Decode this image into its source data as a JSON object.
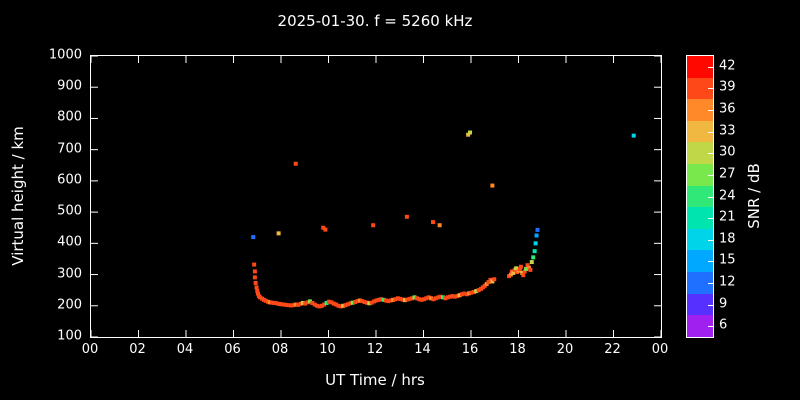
{
  "colors": {
    "background": "#000000",
    "foreground": "#ffffff"
  },
  "chart_data": {
    "type": "scatter",
    "title": "2025-01-30. f = 5260 kHz",
    "xlabel": "UT Time / hrs",
    "ylabel": "Virtual height / km",
    "xlim": [
      0,
      24
    ],
    "ylim": [
      100,
      1000
    ],
    "grid": false,
    "x_ticks": {
      "values": [
        0,
        2,
        4,
        6,
        8,
        10,
        12,
        14,
        16,
        18,
        20,
        22,
        24
      ],
      "labels": [
        "00",
        "02",
        "04",
        "06",
        "08",
        "10",
        "12",
        "14",
        "16",
        "18",
        "20",
        "22",
        "00"
      ]
    },
    "y_ticks": [
      100,
      200,
      300,
      400,
      500,
      600,
      700,
      800,
      900,
      1000
    ],
    "colorbar": {
      "label": "SNR / dB",
      "position": "right",
      "tick_values": [
        6,
        9,
        12,
        15,
        18,
        21,
        24,
        27,
        30,
        33,
        36,
        39,
        42
      ],
      "band_colors": [
        "#a020f0",
        "#5530ff",
        "#2070ff",
        "#00a8ff",
        "#00d4e8",
        "#00e4b0",
        "#30e878",
        "#78e84c",
        "#c0d848",
        "#f0b840",
        "#ff8828",
        "#ff4818",
        "#ff0800"
      ]
    },
    "point_format": [
      "ut_hours",
      "virtual_height_km",
      "snr_db"
    ],
    "points": [
      [
        6.83,
        420,
        12
      ],
      [
        6.87,
        332,
        40
      ],
      [
        6.9,
        310,
        39
      ],
      [
        6.9,
        291,
        40
      ],
      [
        6.93,
        273,
        40
      ],
      [
        6.97,
        259,
        38
      ],
      [
        7.0,
        248,
        40
      ],
      [
        7.03,
        239,
        40
      ],
      [
        7.07,
        231,
        40
      ],
      [
        7.12,
        227,
        40
      ],
      [
        7.2,
        223,
        38
      ],
      [
        7.28,
        219,
        40
      ],
      [
        7.36,
        216,
        40
      ],
      [
        7.45,
        213,
        40
      ],
      [
        7.53,
        211,
        36
      ],
      [
        7.62,
        210,
        40
      ],
      [
        7.72,
        209,
        40
      ],
      [
        7.82,
        208,
        40
      ],
      [
        7.92,
        206,
        40
      ],
      [
        8.0,
        205,
        38
      ],
      [
        8.1,
        204,
        40
      ],
      [
        8.2,
        203,
        40
      ],
      [
        8.32,
        202,
        40
      ],
      [
        8.42,
        201,
        40
      ],
      [
        8.52,
        202,
        40
      ],
      [
        8.62,
        204,
        36
      ],
      [
        8.72,
        203,
        40
      ],
      [
        8.82,
        206,
        40
      ],
      [
        8.92,
        209,
        33
      ],
      [
        9.02,
        207,
        40
      ],
      [
        9.12,
        211,
        40
      ],
      [
        9.22,
        214,
        27
      ],
      [
        9.32,
        209,
        40
      ],
      [
        9.42,
        204,
        40
      ],
      [
        9.52,
        200,
        38
      ],
      [
        9.62,
        198,
        40
      ],
      [
        9.72,
        200,
        40
      ],
      [
        9.82,
        204,
        40
      ],
      [
        9.92,
        209,
        24
      ],
      [
        10.02,
        213,
        40
      ],
      [
        10.12,
        211,
        40
      ],
      [
        10.22,
        207,
        40
      ],
      [
        10.32,
        204,
        38
      ],
      [
        10.42,
        200,
        40
      ],
      [
        10.52,
        198,
        40
      ],
      [
        10.62,
        200,
        33
      ],
      [
        10.72,
        202,
        40
      ],
      [
        10.82,
        205,
        40
      ],
      [
        10.92,
        208,
        40
      ],
      [
        11.02,
        210,
        27
      ],
      [
        11.12,
        212,
        40
      ],
      [
        11.22,
        215,
        40
      ],
      [
        11.32,
        217,
        36
      ],
      [
        11.42,
        215,
        40
      ],
      [
        11.52,
        212,
        40
      ],
      [
        11.62,
        210,
        40
      ],
      [
        11.72,
        208,
        30
      ],
      [
        11.82,
        210,
        40
      ],
      [
        11.92,
        214,
        40
      ],
      [
        12.02,
        217,
        40
      ],
      [
        12.12,
        219,
        38
      ],
      [
        12.22,
        221,
        40
      ],
      [
        12.32,
        219,
        24
      ],
      [
        12.42,
        217,
        40
      ],
      [
        12.52,
        215,
        40
      ],
      [
        12.62,
        217,
        40
      ],
      [
        12.72,
        219,
        36
      ],
      [
        12.82,
        221,
        40
      ],
      [
        12.92,
        224,
        40
      ],
      [
        13.02,
        222,
        40
      ],
      [
        13.12,
        220,
        40
      ],
      [
        13.22,
        218,
        33
      ],
      [
        13.32,
        220,
        40
      ],
      [
        13.42,
        222,
        40
      ],
      [
        13.52,
        224,
        40
      ],
      [
        13.62,
        227,
        27
      ],
      [
        13.72,
        224,
        40
      ],
      [
        13.82,
        221,
        40
      ],
      [
        13.92,
        219,
        40
      ],
      [
        14.02,
        221,
        38
      ],
      [
        14.12,
        224,
        40
      ],
      [
        14.22,
        227,
        40
      ],
      [
        14.32,
        224,
        36
      ],
      [
        14.42,
        221,
        40
      ],
      [
        14.52,
        224,
        40
      ],
      [
        14.62,
        227,
        40
      ],
      [
        14.72,
        229,
        40
      ],
      [
        14.82,
        227,
        24
      ],
      [
        14.92,
        224,
        40
      ],
      [
        15.02,
        227,
        40
      ],
      [
        15.12,
        229,
        40
      ],
      [
        15.22,
        231,
        38
      ],
      [
        15.32,
        229,
        40
      ],
      [
        15.42,
        231,
        40
      ],
      [
        15.52,
        234,
        33
      ],
      [
        15.62,
        237,
        40
      ],
      [
        15.72,
        239,
        40
      ],
      [
        15.82,
        237,
        40
      ],
      [
        15.92,
        240,
        36
      ],
      [
        16.02,
        242,
        40
      ],
      [
        16.12,
        244,
        40
      ],
      [
        16.22,
        247,
        30
      ],
      [
        16.32,
        250,
        40
      ],
      [
        16.42,
        254,
        40
      ],
      [
        16.5,
        259,
        38
      ],
      [
        16.58,
        264,
        40
      ],
      [
        16.66,
        270,
        36
      ],
      [
        16.74,
        276,
        40
      ],
      [
        16.82,
        283,
        40
      ],
      [
        16.9,
        278,
        33
      ],
      [
        16.98,
        285,
        40
      ],
      [
        17.6,
        295,
        40
      ],
      [
        17.68,
        300,
        36
      ],
      [
        17.72,
        310,
        40
      ],
      [
        17.78,
        305,
        33
      ],
      [
        17.84,
        315,
        40
      ],
      [
        17.9,
        320,
        30
      ],
      [
        17.94,
        308,
        40
      ],
      [
        18.0,
        312,
        36
      ],
      [
        18.06,
        318,
        40
      ],
      [
        18.1,
        325,
        40
      ],
      [
        18.16,
        305,
        33
      ],
      [
        18.2,
        298,
        40
      ],
      [
        18.26,
        310,
        40
      ],
      [
        18.32,
        318,
        27
      ],
      [
        18.38,
        330,
        40
      ],
      [
        18.44,
        322,
        36
      ],
      [
        18.5,
        315,
        40
      ],
      [
        18.56,
        340,
        30
      ],
      [
        18.62,
        355,
        24
      ],
      [
        18.68,
        375,
        21
      ],
      [
        18.72,
        400,
        18
      ],
      [
        18.76,
        425,
        15
      ],
      [
        18.8,
        443,
        12
      ],
      [
        7.9,
        432,
        33
      ],
      [
        8.62,
        655,
        40
      ],
      [
        9.78,
        450,
        40
      ],
      [
        9.87,
        444,
        39
      ],
      [
        11.88,
        458,
        40
      ],
      [
        13.3,
        485,
        40
      ],
      [
        14.4,
        468,
        40
      ],
      [
        14.68,
        458,
        36
      ],
      [
        15.88,
        748,
        33
      ],
      [
        15.96,
        755,
        30
      ],
      [
        16.9,
        585,
        36
      ],
      [
        22.85,
        745,
        18
      ]
    ]
  }
}
